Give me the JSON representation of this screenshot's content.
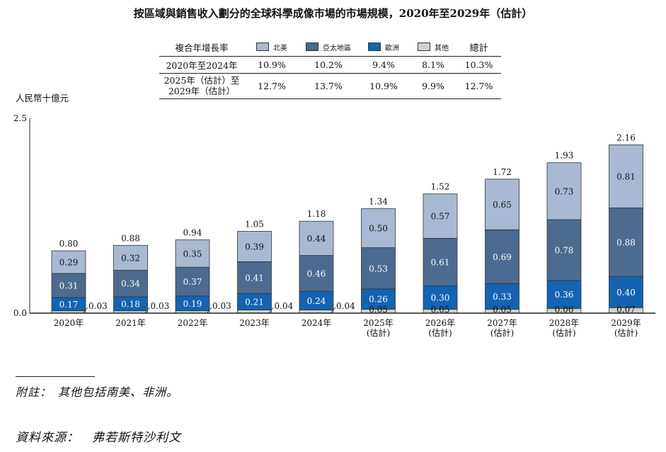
{
  "title": "按區域與銷售收入劃分的全球科學成像市場的市場規模，2020年至2029年（估計）",
  "unit_label": "人民幣十億元",
  "cagr_table": {
    "header_label": "複合年增長率",
    "columns": [
      "北美",
      "亞太地區",
      "歐洲",
      "其他",
      "總計"
    ],
    "rows": [
      {
        "label": "2020年至2024年",
        "values": [
          "10.9%",
          "10.2%",
          "9.4%",
          "8.1%",
          "10.3%"
        ]
      },
      {
        "label_line1": "2025年（估計）至",
        "label_line2": "2029年（估計）",
        "values": [
          "12.7%",
          "13.7%",
          "10.9%",
          "9.9%",
          "12.7%"
        ]
      }
    ]
  },
  "colors": {
    "north_america": "#a9b9d3",
    "asia_pacific": "#4d6a90",
    "europe": "#1463b2",
    "other": "#ccd3c9"
  },
  "footnote": "附註：　其他包括南美、非洲。",
  "source": "資料來源：　弗若斯特沙利文",
  "chart_data": {
    "type": "bar",
    "stacked": true,
    "categories": [
      [
        "2020年"
      ],
      [
        "2021年"
      ],
      [
        "2022年"
      ],
      [
        "2023年"
      ],
      [
        "2024年"
      ],
      [
        "2025年",
        "(估計)"
      ],
      [
        "2026年",
        "(估計)"
      ],
      [
        "2027年",
        "(估計)"
      ],
      [
        "2028年",
        "(估計)"
      ],
      [
        "2029年",
        "(估計)"
      ]
    ],
    "series": [
      {
        "name": "其他",
        "color": "#ccd3c9",
        "values": [
          0.03,
          0.03,
          0.03,
          0.04,
          0.04,
          0.05,
          0.05,
          0.05,
          0.06,
          0.07
        ]
      },
      {
        "name": "歐洲",
        "color": "#1463b2",
        "values": [
          0.17,
          0.18,
          0.19,
          0.21,
          0.24,
          0.26,
          0.3,
          0.33,
          0.36,
          0.4
        ]
      },
      {
        "name": "亞太地區",
        "color": "#4d6a90",
        "values": [
          0.31,
          0.34,
          0.37,
          0.41,
          0.46,
          0.53,
          0.61,
          0.69,
          0.78,
          0.88
        ]
      },
      {
        "name": "北美",
        "color": "#a9b9d3",
        "values": [
          0.29,
          0.32,
          0.35,
          0.39,
          0.44,
          0.5,
          0.57,
          0.65,
          0.73,
          0.81
        ]
      }
    ],
    "totals": [
      0.8,
      0.88,
      0.94,
      1.05,
      1.18,
      1.34,
      1.52,
      1.72,
      1.93,
      2.16
    ],
    "value_labels": {
      "other": [
        "0.03",
        "0.03",
        "0.03",
        "0.04",
        "0.04",
        "0.05",
        "0.05",
        "0.05",
        "0.06",
        "0.07"
      ],
      "europe": [
        "0.17",
        "0.18",
        "0.19",
        "0.21",
        "0.24",
        "0.26",
        "0.30",
        "0.33",
        "0.36",
        "0.40"
      ],
      "asia_pacific": [
        "0.31",
        "0.34",
        "0.37",
        "0.41",
        "0.46",
        "0.53",
        "0.61",
        "0.69",
        "0.78",
        "0.88"
      ],
      "north_america": [
        "0.29",
        "0.32",
        "0.35",
        "0.39",
        "0.44",
        "0.50",
        "0.57",
        "0.65",
        "0.73",
        "0.81"
      ],
      "totals": [
        "0.80",
        "0.88",
        "0.94",
        "1.05",
        "1.18",
        "1.34",
        "1.52",
        "1.72",
        "1.93",
        "2.16"
      ]
    },
    "yticks": [
      "0.0",
      "2.5"
    ],
    "ylim": [
      0,
      2.5
    ],
    "legend": "table-header"
  }
}
